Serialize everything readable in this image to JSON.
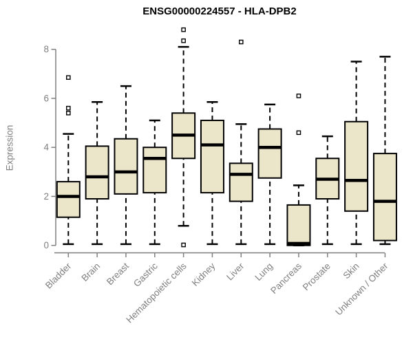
{
  "chart_data": {
    "type": "boxplot",
    "title": "ENSG00000224557 - HLA-DPB2",
    "ylabel": "Expression",
    "xlabel": "",
    "ylim": [
      0,
      9
    ],
    "y_ticks": [
      0,
      2,
      4,
      6,
      8
    ],
    "grid": false,
    "legend": "none",
    "colors": {
      "box_fill": "#EBE5C9",
      "box_stroke": "#000000",
      "median": "#000000",
      "whisker": "#000000",
      "outlier": "#000000",
      "axis": "#7F7F7F",
      "title": "#000000",
      "background": "#FFFFFF"
    },
    "categories": [
      "Bladder",
      "Brain",
      "Breast",
      "Gastric",
      "Hematopoietic cells",
      "Kidney",
      "Liver",
      "Lung",
      "Pancreas",
      "Prostate",
      "Skin",
      "Unknown / Other"
    ],
    "series": [
      {
        "name": "Bladder",
        "whisker_low": 0.05,
        "q1": 1.15,
        "median": 2.0,
        "q3": 2.6,
        "whisker_high": 4.55,
        "outliers": [
          5.4,
          5.6,
          6.85
        ]
      },
      {
        "name": "Brain",
        "whisker_low": 0.05,
        "q1": 1.9,
        "median": 2.8,
        "q3": 4.05,
        "whisker_high": 5.85,
        "outliers": []
      },
      {
        "name": "Breast",
        "whisker_low": 0.05,
        "q1": 2.1,
        "median": 3.0,
        "q3": 4.35,
        "whisker_high": 6.5,
        "outliers": []
      },
      {
        "name": "Gastric",
        "whisker_low": 0.05,
        "q1": 2.15,
        "median": 3.55,
        "q3": 4.0,
        "whisker_high": 5.1,
        "outliers": []
      },
      {
        "name": "Hematopoietic cells",
        "whisker_low": 0.8,
        "q1": 3.55,
        "median": 4.5,
        "q3": 5.4,
        "whisker_high": 8.1,
        "outliers": [
          0.02,
          8.35,
          8.8
        ]
      },
      {
        "name": "Kidney",
        "whisker_low": 0.05,
        "q1": 2.15,
        "median": 4.1,
        "q3": 5.1,
        "whisker_high": 5.85,
        "outliers": []
      },
      {
        "name": "Liver",
        "whisker_low": 0.05,
        "q1": 1.8,
        "median": 2.9,
        "q3": 3.35,
        "whisker_high": 4.95,
        "outliers": [
          8.3
        ]
      },
      {
        "name": "Lung",
        "whisker_low": 0.05,
        "q1": 2.75,
        "median": 4.0,
        "q3": 4.75,
        "whisker_high": 5.75,
        "outliers": []
      },
      {
        "name": "Pancreas",
        "whisker_low": 0.0,
        "q1": 0.0,
        "median": 0.08,
        "q3": 1.65,
        "whisker_high": 2.45,
        "outliers": [
          4.6,
          6.1
        ]
      },
      {
        "name": "Prostate",
        "whisker_low": 0.05,
        "q1": 1.9,
        "median": 2.7,
        "q3": 3.55,
        "whisker_high": 4.45,
        "outliers": []
      },
      {
        "name": "Skin",
        "whisker_low": 0.05,
        "q1": 1.4,
        "median": 2.65,
        "q3": 5.05,
        "whisker_high": 7.5,
        "outliers": []
      },
      {
        "name": "Unknown / Other",
        "whisker_low": 0.05,
        "q1": 0.2,
        "median": 1.8,
        "q3": 3.75,
        "whisker_high": 7.7,
        "outliers": []
      }
    ]
  }
}
